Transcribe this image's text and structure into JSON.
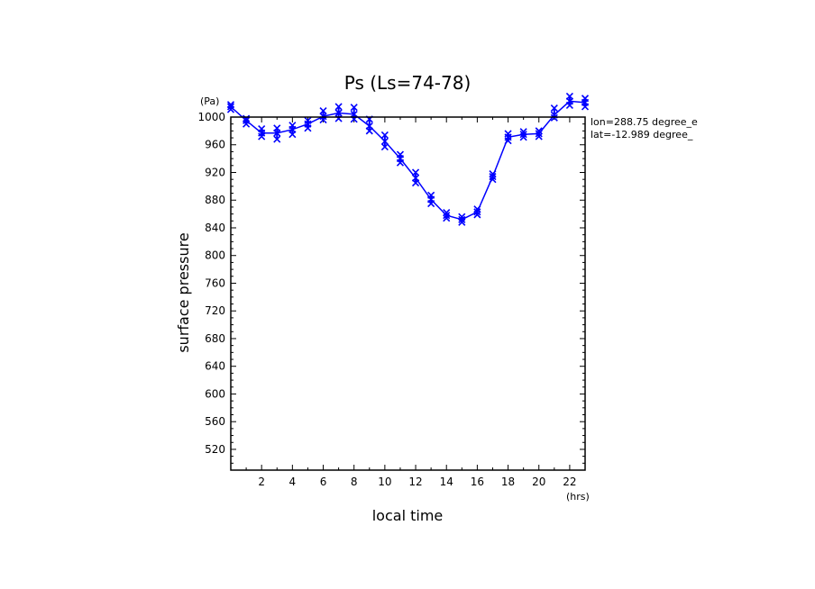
{
  "chart_data": {
    "type": "line",
    "title": "Ps (Ls=74-78)",
    "xlabel": "local time",
    "ylabel": "surface pressure",
    "x_unit": "(hrs)",
    "y_unit": "(Pa)",
    "xlim": [
      0,
      23
    ],
    "ylim": [
      490,
      1000
    ],
    "x_ticks": [
      2,
      4,
      6,
      8,
      10,
      12,
      14,
      16,
      18,
      20,
      22
    ],
    "y_ticks": [
      520,
      560,
      600,
      640,
      680,
      720,
      760,
      800,
      840,
      880,
      920,
      960,
      1000
    ],
    "annotations": [
      "lon=288.75 degree_e",
      "lat=-12.989 degree_"
    ],
    "grid": false,
    "series": [
      {
        "color": "#0000ff",
        "marker": "x",
        "x": [
          0,
          1,
          2,
          3,
          4,
          5,
          6,
          7,
          8,
          9,
          10,
          11,
          12,
          13,
          14,
          15,
          16,
          17,
          18,
          19,
          20,
          21,
          22,
          23
        ],
        "y": [
          1015,
          995,
          977,
          977,
          982,
          990,
          1001,
          1006,
          1004,
          987,
          965,
          940,
          912,
          881,
          858,
          852,
          863,
          914,
          971,
          975,
          976,
          1003,
          1023,
          1021
        ],
        "y_spread": [
          [
            1011,
            1018
          ],
          [
            990,
            998
          ],
          [
            972,
            983
          ],
          [
            968,
            984
          ],
          [
            975,
            988
          ],
          [
            984,
            995
          ],
          [
            996,
            1009
          ],
          [
            998,
            1015
          ],
          [
            997,
            1014
          ],
          [
            980,
            997
          ],
          [
            957,
            974
          ],
          [
            934,
            946
          ],
          [
            905,
            920
          ],
          [
            875,
            887
          ],
          [
            854,
            862
          ],
          [
            848,
            856
          ],
          [
            859,
            867
          ],
          [
            910,
            918
          ],
          [
            966,
            976
          ],
          [
            971,
            979
          ],
          [
            972,
            980
          ],
          [
            999,
            1013
          ],
          [
            1017,
            1030
          ],
          [
            1015,
            1027
          ]
        ]
      }
    ]
  }
}
